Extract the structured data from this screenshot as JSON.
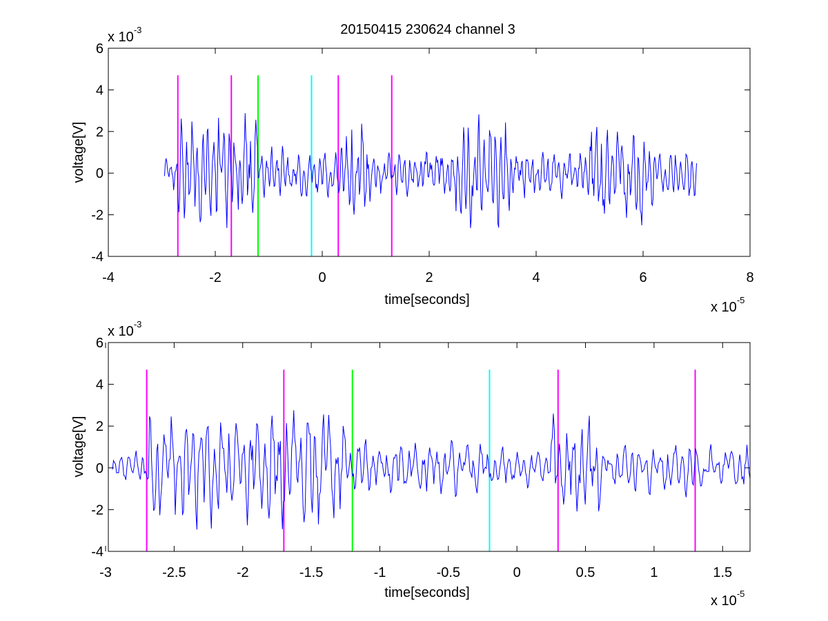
{
  "chart_data": [
    {
      "type": "line",
      "title": "20150415 230624 channel 3",
      "xlabel": "time[seconds]",
      "ylabel": "voltage[V]",
      "x_multiplier_label": "x 10",
      "x_multiplier_exp": "-5",
      "y_multiplier_label": "x 10",
      "y_multiplier_exp": "-3",
      "xlim": [
        -4,
        8
      ],
      "ylim": [
        -4,
        6
      ],
      "x_ticks": [
        -4,
        -2,
        0,
        2,
        4,
        6,
        8
      ],
      "x_tick_labels": [
        "-4",
        "-2",
        "0",
        "2",
        "4",
        "6",
        "8"
      ],
      "y_ticks": [
        -4,
        -2,
        0,
        2,
        4,
        6
      ],
      "y_tick_labels": [
        "-4",
        "-2",
        "0",
        "2",
        "4",
        "6"
      ],
      "grid": false,
      "series": [
        {
          "color": "#0000ff",
          "x_range": [
            -2.95,
            7.0
          ],
          "samples": 700,
          "segments": [
            {
              "x0": -2.95,
              "x1": -2.7,
              "amp": 0.8
            },
            {
              "x0": -2.7,
              "x1": -1.2,
              "amp": 2.8
            },
            {
              "x0": -1.2,
              "x1": 0.3,
              "amp": 1.2
            },
            {
              "x0": 0.3,
              "x1": 0.9,
              "amp": 2.6
            },
            {
              "x0": 0.9,
              "x1": 2.5,
              "amp": 1.0
            },
            {
              "x0": 2.5,
              "x1": 3.5,
              "amp": 2.8
            },
            {
              "x0": 3.5,
              "x1": 5.0,
              "amp": 1.1
            },
            {
              "x0": 5.0,
              "x1": 6.2,
              "amp": 2.7
            },
            {
              "x0": 6.2,
              "x1": 7.0,
              "amp": 1.2
            }
          ]
        }
      ],
      "vlines": [
        {
          "x": -2.7,
          "color": "#ff00ff",
          "y": [
            -4,
            4.7
          ]
        },
        {
          "x": -1.7,
          "color": "#ff00ff",
          "y": [
            -4,
            4.7
          ]
        },
        {
          "x": -1.2,
          "color": "#00ff00",
          "y": [
            -4,
            4.7
          ]
        },
        {
          "x": -0.2,
          "color": "#00ffff",
          "y": [
            -4,
            4.7
          ]
        },
        {
          "x": 0.3,
          "color": "#ff00ff",
          "y": [
            -4,
            4.7
          ]
        },
        {
          "x": 1.3,
          "color": "#ff00ff",
          "y": [
            -4,
            4.7
          ]
        }
      ]
    },
    {
      "type": "line",
      "title": "",
      "xlabel": "time[seconds]",
      "ylabel": "voltage[V]",
      "x_multiplier_label": "x 10",
      "x_multiplier_exp": "-5",
      "y_multiplier_label": "x 10",
      "y_multiplier_exp": "-3",
      "xlim": [
        -2.98,
        1.7
      ],
      "ylim": [
        -4,
        6
      ],
      "x_ticks": [
        -3,
        -2.5,
        -2,
        -1.5,
        -1,
        -0.5,
        0,
        0.5,
        1,
        1.5
      ],
      "x_tick_labels": [
        "-3",
        "-2.5",
        "-2",
        "-1.5",
        "-1",
        "-0.5",
        "0",
        "0.5",
        "1",
        "1.5"
      ],
      "y_ticks": [
        -4,
        -2,
        0,
        2,
        4,
        6
      ],
      "y_tick_labels": [
        "-4",
        "-2",
        "0",
        "2",
        "4",
        "6"
      ],
      "grid": false,
      "series": [
        {
          "color": "#0000ff",
          "x_range": [
            -2.95,
            1.7
          ],
          "samples": 620,
          "segments": [
            {
              "x0": -2.95,
              "x1": -2.7,
              "amp": 0.8
            },
            {
              "x0": -2.7,
              "x1": -1.25,
              "amp": 2.8
            },
            {
              "x0": -1.25,
              "x1": -0.2,
              "amp": 1.3
            },
            {
              "x0": -0.2,
              "x1": 0.25,
              "amp": 0.9
            },
            {
              "x0": 0.25,
              "x1": 0.6,
              "amp": 2.6
            },
            {
              "x0": 0.6,
              "x1": 1.7,
              "amp": 1.2
            }
          ]
        }
      ],
      "vlines": [
        {
          "x": -2.7,
          "color": "#ff00ff",
          "y": [
            -4,
            4.7
          ]
        },
        {
          "x": -1.7,
          "color": "#ff00ff",
          "y": [
            -4,
            4.7
          ]
        },
        {
          "x": -1.2,
          "color": "#00ff00",
          "y": [
            -4,
            4.7
          ]
        },
        {
          "x": -0.2,
          "color": "#00ffff",
          "y": [
            -4,
            4.7
          ]
        },
        {
          "x": 0.3,
          "color": "#ff00ff",
          "y": [
            -4,
            4.7
          ]
        },
        {
          "x": 1.3,
          "color": "#ff00ff",
          "y": [
            -4,
            4.7
          ]
        }
      ]
    }
  ]
}
